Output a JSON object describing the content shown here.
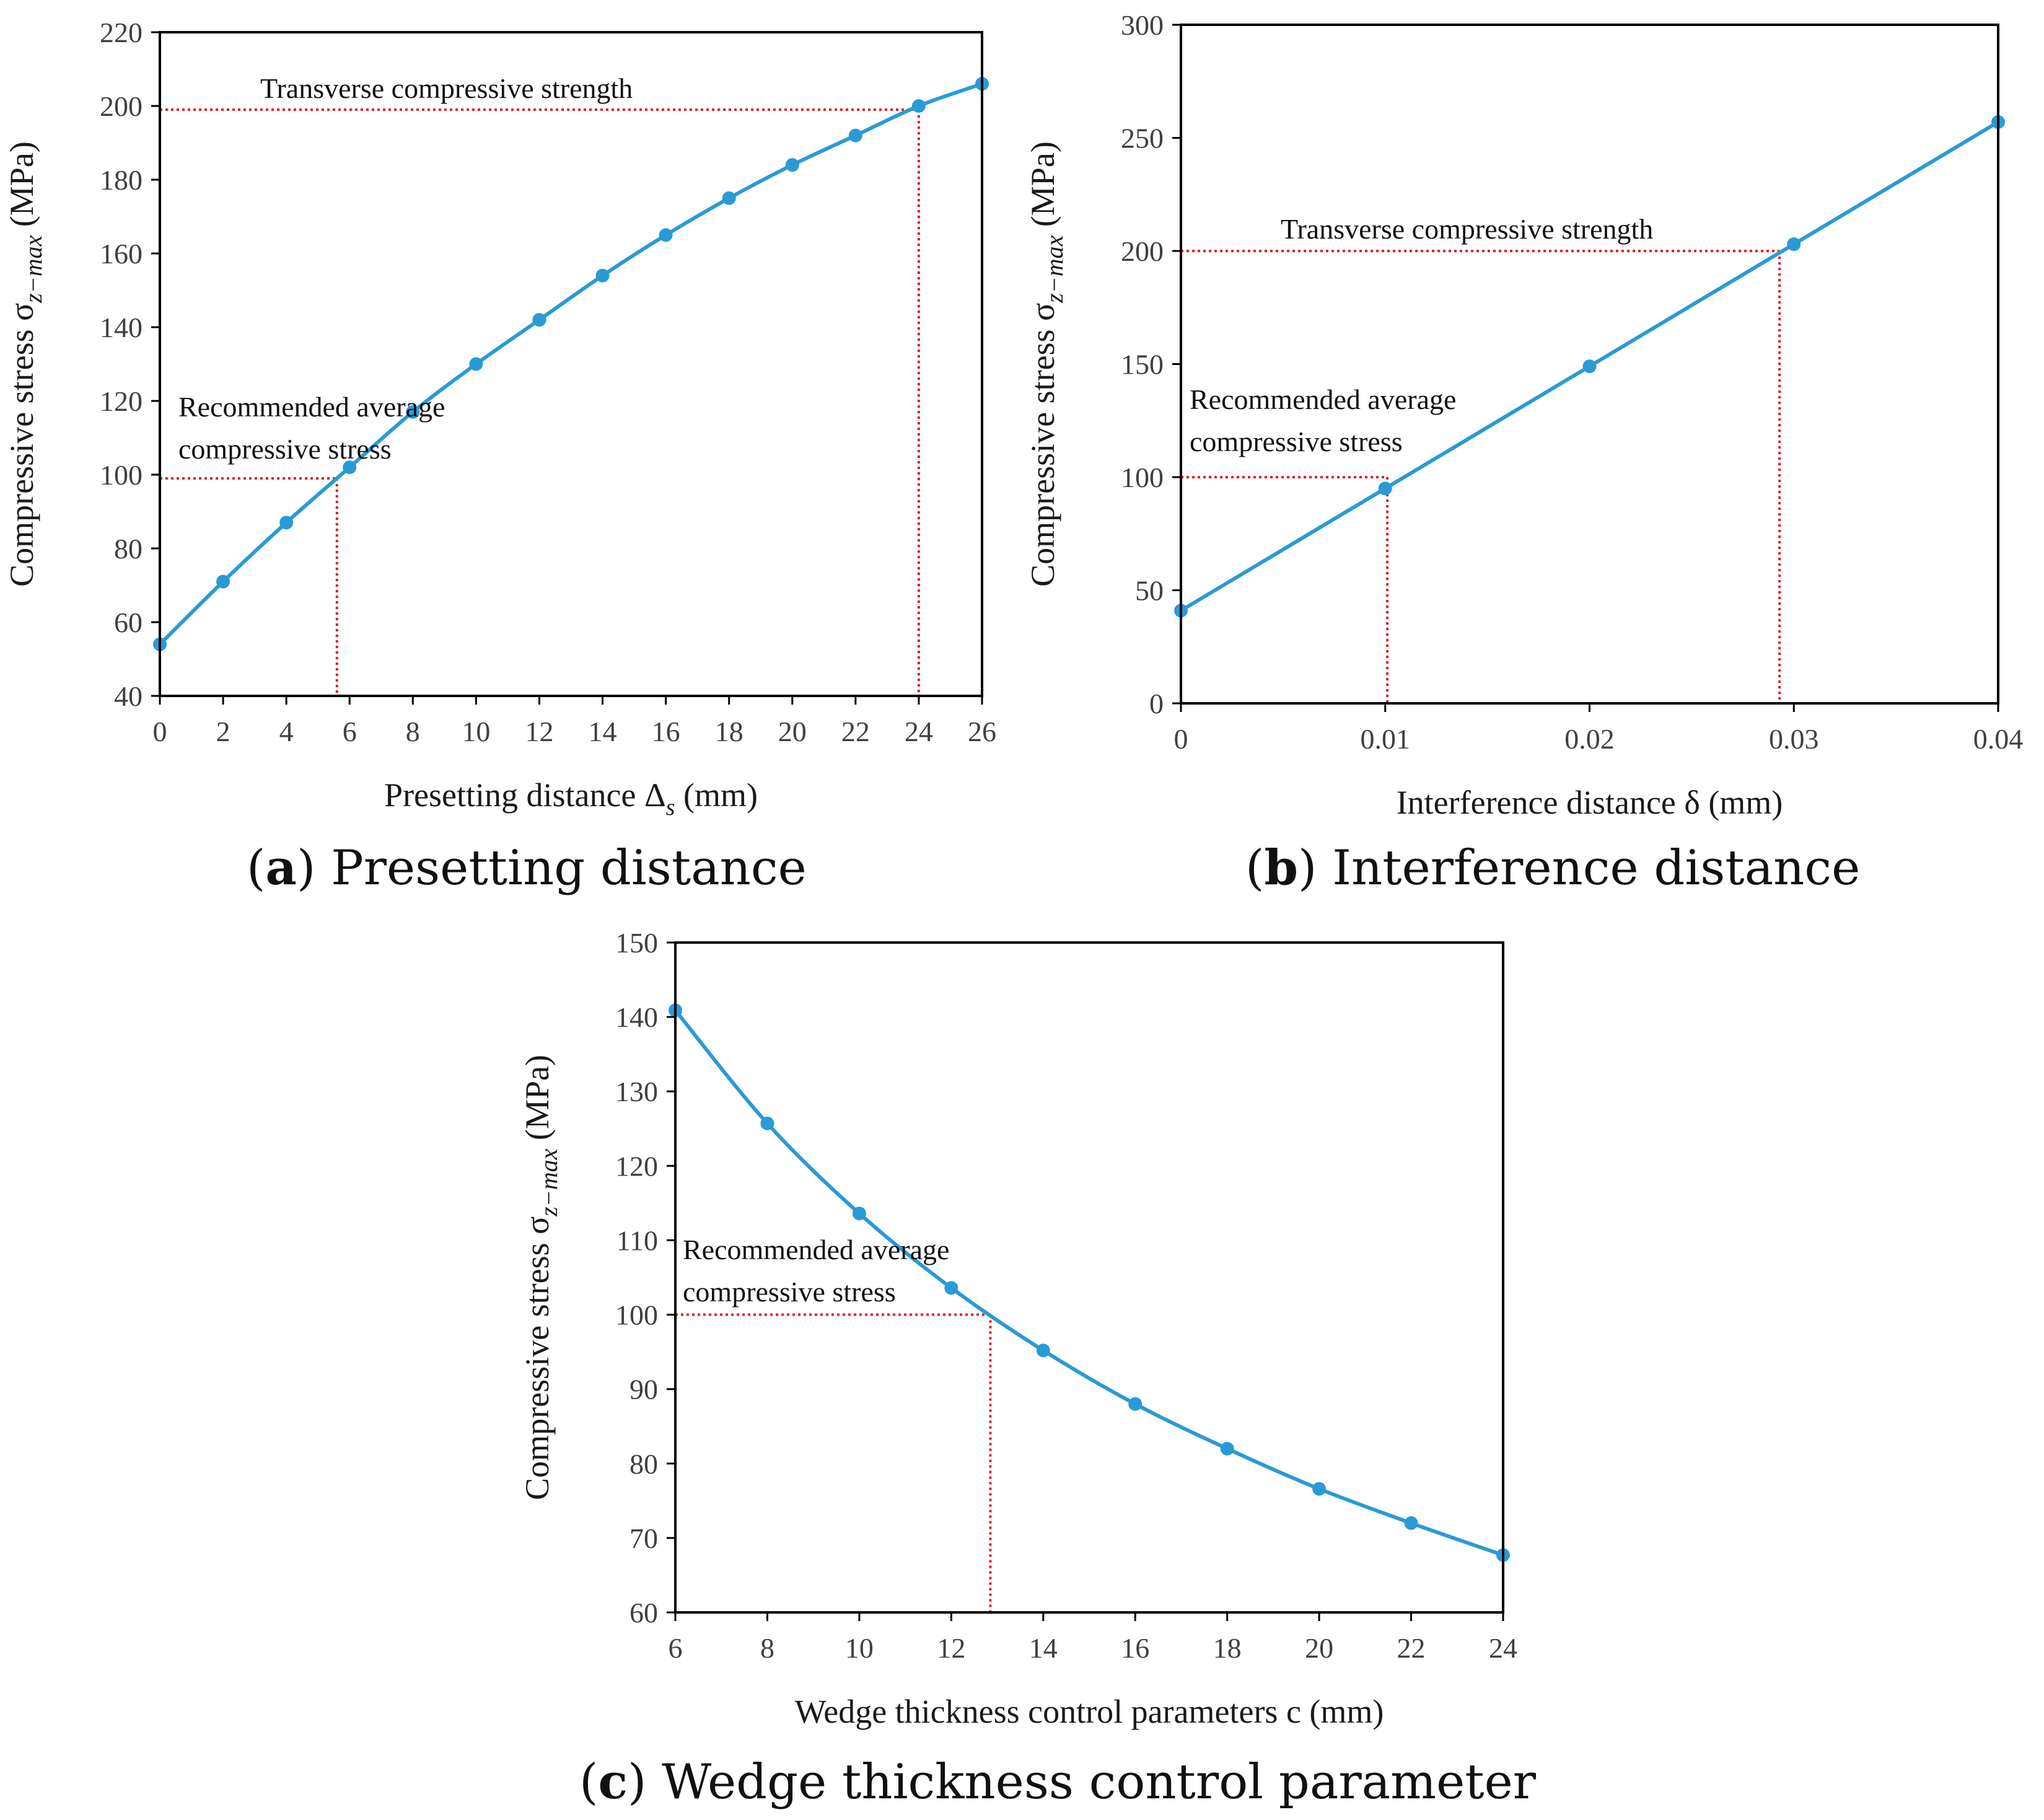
{
  "colors": {
    "series": "#2a9ad6",
    "reference": "#e02020",
    "frame": "#000000",
    "text": "#404040"
  },
  "panels": [
    {
      "caption_letter": "a",
      "caption_text": "Presetting distance",
      "xlabel_main": "Presetting distance Δ",
      "xlabel_sub": "s",
      "xlabel_tail": " (mm)",
      "ylabel_main": "Compressive stress σ",
      "ylabel_sub": "z−max",
      "ylabel_tail": " (MPa)",
      "annotations": [
        "Transverse compressive strength",
        "Recommended average",
        "compressive stress"
      ]
    },
    {
      "caption_letter": "b",
      "caption_text": "Interference distance",
      "xlabel_main": "Interference distance δ",
      "xlabel_sub": "",
      "xlabel_tail": " (mm)",
      "ylabel_main": "Compressive stress σ",
      "ylabel_sub": "z−max",
      "ylabel_tail": " (MPa)",
      "annotations": [
        "Transverse compressive strength",
        "Recommended average",
        "compressive stress"
      ]
    },
    {
      "caption_letter": "c",
      "caption_text": "Wedge thickness control parameter",
      "xlabel_main": "Wedge thickness control parameters c",
      "xlabel_sub": "",
      "xlabel_tail": " (mm)",
      "ylabel_main": "Compressive stress σ",
      "ylabel_sub": "z−max",
      "ylabel_tail": " (MPa)",
      "annotations": [
        "Recommended average",
        "compressive stress"
      ]
    }
  ],
  "chart_data": [
    {
      "type": "line",
      "x": [
        0,
        2,
        4,
        6,
        8,
        10,
        12,
        14,
        16,
        18,
        20,
        22,
        24,
        26
      ],
      "y": [
        54,
        71,
        87,
        102,
        117,
        130,
        142,
        154,
        165,
        175,
        184,
        192,
        200,
        206
      ],
      "xlim": [
        0,
        26
      ],
      "ylim": [
        40,
        220
      ],
      "xticks": [
        0,
        2,
        4,
        6,
        8,
        10,
        12,
        14,
        16,
        18,
        20,
        22,
        24,
        26
      ],
      "yticks": [
        40,
        60,
        80,
        100,
        120,
        140,
        160,
        180,
        200,
        220
      ],
      "reference_lines": [
        {
          "y": 199,
          "x": 24,
          "label": "Transverse compressive strength"
        },
        {
          "y": 99,
          "x": 5.6,
          "label": "Recommended average compressive stress"
        }
      ],
      "grid": false
    },
    {
      "type": "line",
      "x": [
        0,
        0.01,
        0.02,
        0.03,
        0.04
      ],
      "y": [
        41,
        95,
        149,
        203,
        257
      ],
      "xlim": [
        0,
        0.04
      ],
      "ylim": [
        0,
        300
      ],
      "xticks": [
        0,
        0.01,
        0.02,
        0.03,
        0.04
      ],
      "yticks": [
        0,
        50,
        100,
        150,
        200,
        250,
        300
      ],
      "reference_lines": [
        {
          "y": 200,
          "x": 0.0293,
          "label": "Transverse compressive strength"
        },
        {
          "y": 100,
          "x": 0.0101,
          "label": "Recommended average compressive stress"
        }
      ],
      "grid": false
    },
    {
      "type": "line",
      "x": [
        6,
        8,
        10,
        12,
        14,
        16,
        18,
        20,
        22,
        24
      ],
      "y": [
        140.9,
        125.7,
        113.6,
        103.6,
        95.2,
        88.0,
        82.0,
        76.6,
        72.0,
        67.7
      ],
      "xlim": [
        6,
        24
      ],
      "ylim": [
        60,
        150
      ],
      "xticks": [
        6,
        8,
        10,
        12,
        14,
        16,
        18,
        20,
        22,
        24
      ],
      "yticks": [
        60,
        70,
        80,
        90,
        100,
        110,
        120,
        130,
        140,
        150
      ],
      "reference_lines": [
        {
          "y": 100,
          "x": 12.85,
          "label": "Recommended average compressive stress"
        }
      ],
      "grid": false
    }
  ]
}
